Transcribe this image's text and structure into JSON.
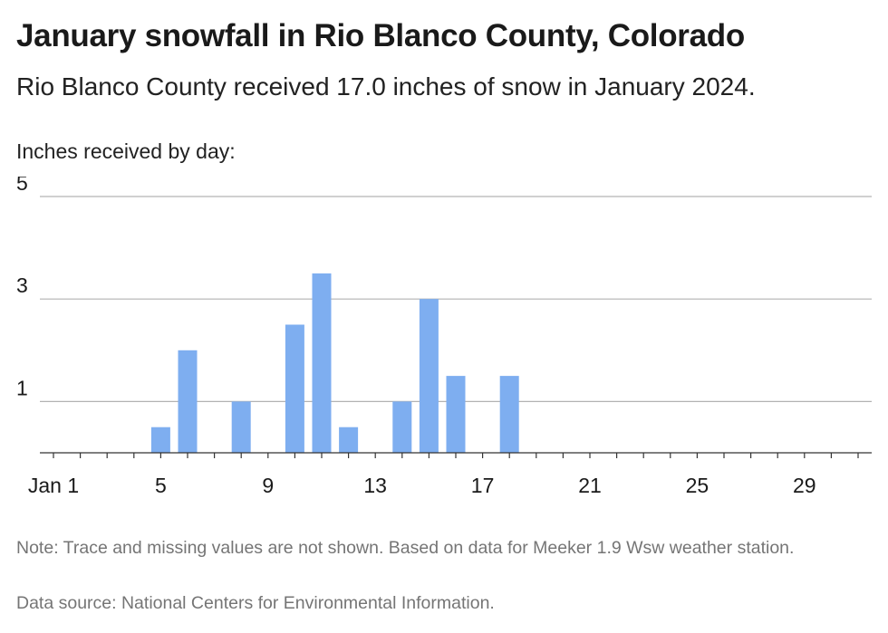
{
  "header": {
    "title": "January snowfall in Rio Blanco County, Colorado",
    "subtitle": "Rio Blanco County received 17.0 inches of snow in January 2024.",
    "ylabel": "Inches received by day:"
  },
  "footer": {
    "note": "Note: Trace and missing values are not shown. Based on data for Meeker 1.9 Wsw weather station.",
    "source": "Data source: National Centers for Environmental Information."
  },
  "colors": {
    "bar": "#7eaef0",
    "grid": "#b3b3b3",
    "axis": "#333333"
  },
  "chart_data": {
    "type": "bar",
    "title": "January snowfall in Rio Blanco County, Colorado",
    "ylabel": "Inches received by day:",
    "x_domain": [
      1,
      31
    ],
    "x_ticks": [
      1,
      5,
      9,
      13,
      17,
      21,
      25,
      29
    ],
    "x_tick_labels": [
      "Jan 1",
      "5",
      "9",
      "13",
      "17",
      "21",
      "25",
      "29"
    ],
    "y_ticks": [
      1,
      3,
      5
    ],
    "ylim": [
      0,
      5
    ],
    "grid": true,
    "days": [
      5,
      6,
      8,
      10,
      11,
      12,
      14,
      15,
      16,
      18
    ],
    "values": [
      0.5,
      2,
      1,
      2.5,
      3.5,
      0.5,
      1,
      3,
      1.5,
      1.5
    ]
  }
}
